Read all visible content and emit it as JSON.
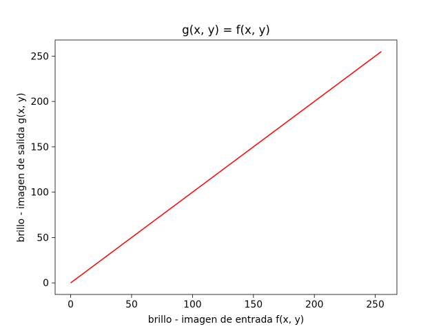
{
  "chart_data": {
    "type": "line",
    "title": "g(x, y) = f(x, y)",
    "xlabel": "brillo - imagen de entrada f(x, y)",
    "ylabel": "brillo - imagen de salida g(x, y)",
    "xlim": [
      -12.75,
      267.75
    ],
    "ylim": [
      -12.75,
      267.75
    ],
    "xticks": [
      0,
      50,
      100,
      150,
      200,
      250
    ],
    "yticks": [
      0,
      50,
      100,
      150,
      200,
      250
    ],
    "grid": false,
    "series": [
      {
        "color": "#ff0000",
        "x": [
          0,
          255
        ],
        "y": [
          0,
          255
        ]
      }
    ]
  }
}
